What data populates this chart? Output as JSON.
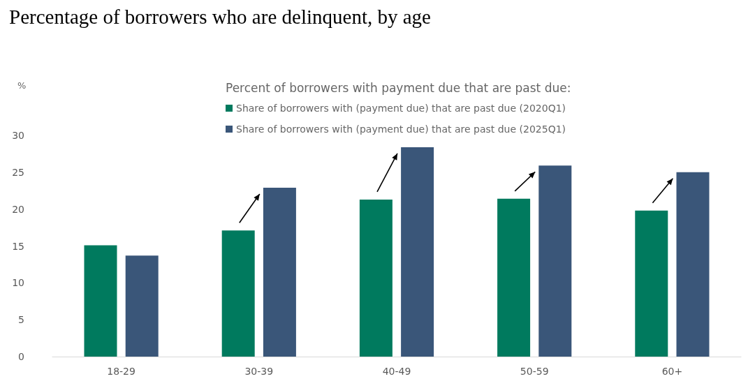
{
  "chart_data": {
    "type": "bar",
    "title": "Percentage of borrowers who are delinquent, by age",
    "ylabel": "%",
    "legend_title": "Percent of borrowers with payment due that are past due:",
    "categories": [
      "18-29",
      "30-39",
      "40-49",
      "50-59",
      "60+"
    ],
    "series": [
      {
        "name": "Share of borrowers with (payment due) that are past due (2020Q1)",
        "color": "#007a5e",
        "values": [
          15.1,
          17.1,
          21.3,
          21.4,
          19.8
        ]
      },
      {
        "name": "Share of borrowers with (payment due) that are past due (2025Q1)",
        "color": "#3a5679",
        "values": [
          13.7,
          22.9,
          28.4,
          25.9,
          25.0
        ]
      }
    ],
    "ylim": [
      0,
      30
    ],
    "yticks": [
      0,
      5,
      10,
      15,
      20,
      25,
      30
    ],
    "grid": false,
    "legend": "top"
  }
}
